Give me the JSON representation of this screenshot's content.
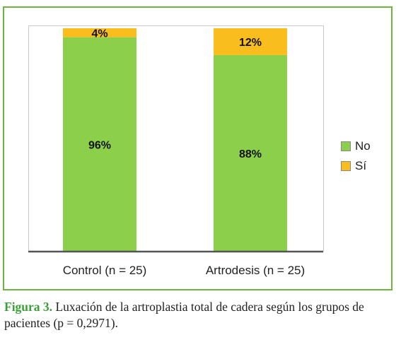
{
  "chart_data": {
    "type": "bar",
    "stacked": true,
    "percent": true,
    "categories": [
      "Control (n = 25)",
      "Artrodesis (n = 25)"
    ],
    "series": [
      {
        "name": "No",
        "values": [
          96,
          88
        ],
        "labels": [
          "96%",
          "88%"
        ],
        "color": "#8ccf4a"
      },
      {
        "name": "Sí",
        "values": [
          4,
          12
        ],
        "labels": [
          "4%",
          "12%"
        ],
        "color": "#f9bd1d"
      }
    ],
    "ylim": [
      0,
      100
    ],
    "grid": false,
    "legend_position": "right"
  },
  "caption": {
    "figure_label": "Figura 3.",
    "text": " Luxación de la artroplastia total de cadera según los grupos de pacientes (p = 0,2971)."
  },
  "colors": {
    "frame_border": "#6cb33f",
    "caption_label": "#3aa037",
    "axis": "#555555"
  }
}
